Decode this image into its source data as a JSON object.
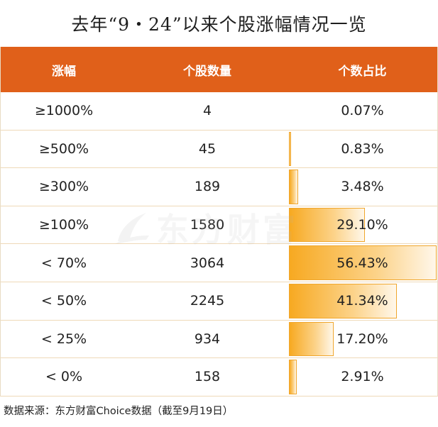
{
  "title": "去年“9・24”以来个股涨幅情况一览",
  "watermark": "东方财富",
  "source": "数据来源：东方财富Choice数据（截至9月19日）",
  "chart_data": {
    "type": "table",
    "columns": [
      "涨幅",
      "个股数量",
      "个数占比"
    ],
    "rows": [
      {
        "range": "≥1000%",
        "count": "4",
        "share": "0.07%",
        "share_value": 0.07
      },
      {
        "range": "≥500%",
        "count": "45",
        "share": "0.83%",
        "share_value": 0.83
      },
      {
        "range": "≥300%",
        "count": "189",
        "share": "3.48%",
        "share_value": 3.48
      },
      {
        "range": "≥100%",
        "count": "1580",
        "share": "29.10%",
        "share_value": 29.1
      },
      {
        "range": "< 70%",
        "count": "3064",
        "share": "56.43%",
        "share_value": 56.43
      },
      {
        "range": "< 50%",
        "count": "2245",
        "share": "41.34%",
        "share_value": 41.34
      },
      {
        "range": "< 25%",
        "count": "934",
        "share": "17.20%",
        "share_value": 17.2
      },
      {
        "range": "< 0%",
        "count": "158",
        "share": "2.91%",
        "share_value": 2.91
      }
    ],
    "bar_max_value": 56.43,
    "colors": {
      "header": "#e0601a",
      "bar": "#f7a921"
    }
  }
}
